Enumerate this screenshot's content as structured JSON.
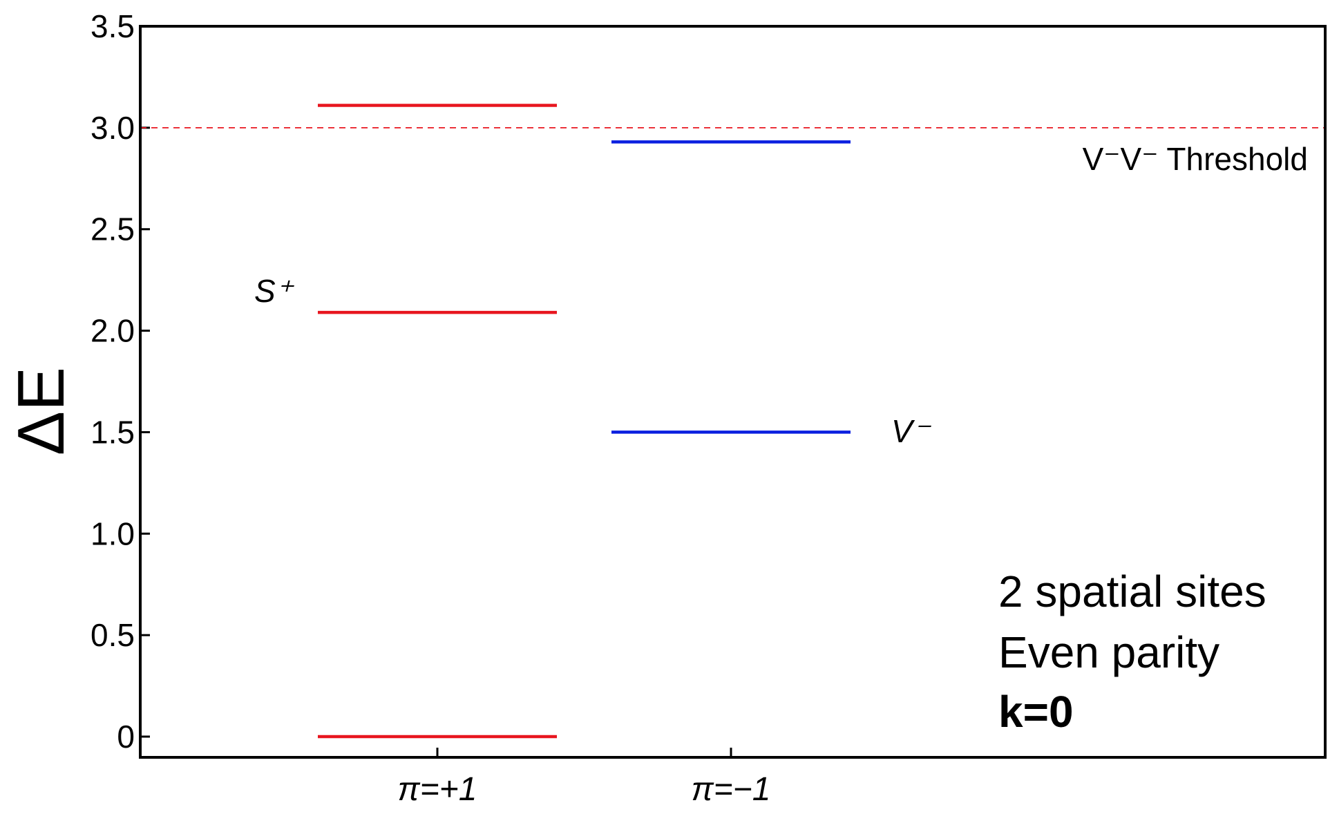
{
  "chart_data": {
    "type": "energy-level",
    "ylabel": "ΔE",
    "ylim": [
      -0.1,
      3.5
    ],
    "yticks": [
      {
        "value": 0,
        "label": "0"
      },
      {
        "value": 0.5,
        "label": "0.5"
      },
      {
        "value": 1.0,
        "label": "1.0"
      },
      {
        "value": 1.5,
        "label": "1.5"
      },
      {
        "value": 2.0,
        "label": "2.0"
      },
      {
        "value": 2.5,
        "label": "2.5"
      },
      {
        "value": 3.0,
        "label": "3.0"
      },
      {
        "value": 3.5,
        "label": "3.5"
      }
    ],
    "categories": [
      "π=+1",
      "π=−1"
    ],
    "series": [
      {
        "category": "π=+1",
        "color": "#e8161f",
        "levels": [
          0.0,
          2.09,
          3.11
        ]
      },
      {
        "category": "π=−1",
        "color": "#0a1fe0",
        "levels": [
          1.5,
          2.93
        ]
      }
    ],
    "threshold": {
      "value": 3.0,
      "color": "#e8161f",
      "style": "dashed",
      "label": "V⁻V⁻ Threshold"
    },
    "annotations": [
      {
        "text": "S⁺",
        "near_level": 2.09,
        "category": "π=+1",
        "side": "left"
      },
      {
        "text": "V⁻",
        "near_level": 1.5,
        "category": "π=−1",
        "side": "right"
      }
    ],
    "info_text": [
      {
        "text": "2 spatial sites",
        "bold": false
      },
      {
        "text": "Even parity",
        "bold": false
      },
      {
        "text": "k=0",
        "bold": true
      }
    ],
    "grid": false
  }
}
